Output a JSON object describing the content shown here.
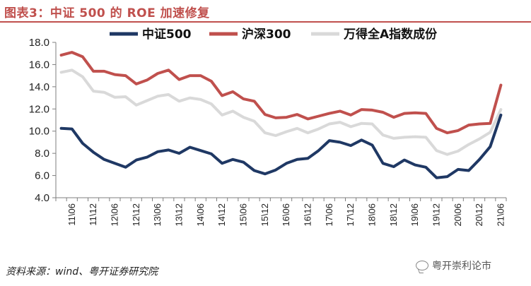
{
  "header": {
    "title": "图表3：中证 500 的 ROE 加速修复"
  },
  "footer": {
    "source": "资料来源：wind、粤开证券研究院",
    "watermark": "粤开崇利论市"
  },
  "colors": {
    "title": "#c0504d",
    "csi500": "#1f3864",
    "csi300": "#c0504d",
    "wind_a": "#d9d9d9"
  },
  "chart_data": {
    "type": "line",
    "title": "中证 500 的 ROE 加速修复",
    "xlabel": "",
    "ylabel": "",
    "ylim": [
      4.0,
      18.0
    ],
    "yticks": [
      "4.0",
      "6.0",
      "8.0",
      "10.0",
      "12.0",
      "14.0",
      "16.0",
      "18.0"
    ],
    "ytick_values": [
      4,
      6,
      8,
      10,
      12,
      14,
      16,
      18
    ],
    "grid": false,
    "legend": "top",
    "x": [
      "11Q1",
      "11Q2",
      "11Q3",
      "11Q4",
      "12Q1",
      "12Q2",
      "12Q3",
      "12Q4",
      "13Q1",
      "13Q2",
      "13Q3",
      "13Q4",
      "14Q1",
      "14Q2",
      "14Q3",
      "14Q4",
      "15Q1",
      "15Q2",
      "15Q3",
      "15Q4",
      "16Q1",
      "16Q2",
      "16Q3",
      "16Q4",
      "17Q1",
      "17Q2",
      "17Q3",
      "17Q4",
      "18Q1",
      "18Q2",
      "18Q3",
      "18Q4",
      "19Q1",
      "19Q2",
      "19Q3",
      "19Q4",
      "20Q1",
      "20Q2",
      "20Q3",
      "20Q4",
      "21Q1",
      "21Q2"
    ],
    "xtick_labels": [
      "11\\06",
      "11\\12",
      "12\\06",
      "12\\12",
      "13\\06",
      "13\\12",
      "14\\06",
      "14\\12",
      "15\\06",
      "15\\12",
      "16\\06",
      "16\\12",
      "17\\06",
      "17\\12",
      "18\\06",
      "18\\12",
      "19\\06",
      "19\\12",
      "20\\06",
      "20\\12",
      "21\\06"
    ],
    "xtick_positions": [
      1,
      3,
      5,
      7,
      9,
      11,
      13,
      15,
      17,
      19,
      21,
      23,
      25,
      27,
      29,
      31,
      33,
      35,
      37,
      39,
      41
    ],
    "series": [
      {
        "name": "中证500",
        "color": "#1f3864",
        "values": [
          10.25,
          10.2,
          8.9,
          8.1,
          7.45,
          7.1,
          6.75,
          7.4,
          7.65,
          8.15,
          8.3,
          8.0,
          8.55,
          8.25,
          7.95,
          7.1,
          7.45,
          7.2,
          6.45,
          6.15,
          6.5,
          7.1,
          7.45,
          7.55,
          8.25,
          9.15,
          9.0,
          8.7,
          9.2,
          8.75,
          7.1,
          6.8,
          7.4,
          6.95,
          6.75,
          5.8,
          5.9,
          6.55,
          6.45,
          7.45,
          8.6,
          11.45
        ]
      },
      {
        "name": "沪深300",
        "color": "#c0504d",
        "values": [
          16.85,
          17.1,
          16.7,
          15.4,
          15.4,
          15.1,
          15.0,
          14.25,
          14.6,
          15.2,
          15.5,
          14.65,
          15.0,
          15.0,
          14.5,
          13.2,
          13.55,
          12.9,
          12.7,
          11.5,
          11.2,
          11.25,
          11.5,
          11.1,
          11.35,
          11.6,
          11.8,
          11.45,
          11.95,
          11.9,
          11.7,
          11.25,
          11.6,
          11.65,
          11.6,
          10.25,
          9.85,
          10.05,
          10.55,
          10.65,
          10.7,
          14.15
        ]
      },
      {
        "name": "万得全A指数成份",
        "color": "#d9d9d9",
        "values": [
          15.3,
          15.5,
          14.9,
          13.6,
          13.5,
          13.05,
          13.1,
          12.35,
          12.75,
          13.15,
          13.3,
          12.7,
          13.0,
          12.85,
          12.45,
          11.45,
          11.8,
          11.25,
          10.9,
          9.85,
          9.6,
          9.95,
          10.25,
          9.85,
          10.2,
          10.65,
          10.8,
          10.4,
          10.7,
          10.65,
          9.65,
          9.35,
          9.45,
          9.5,
          9.45,
          8.25,
          7.9,
          8.2,
          8.8,
          9.3,
          9.9,
          11.95
        ]
      }
    ]
  }
}
